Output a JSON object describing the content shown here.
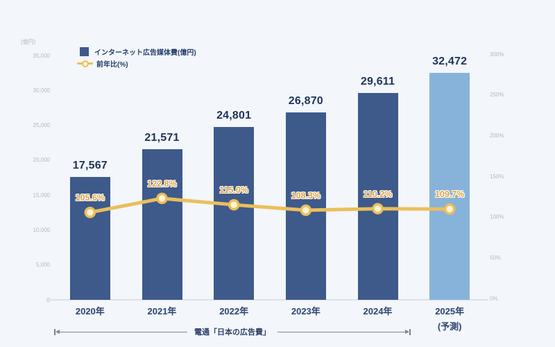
{
  "chart_data": {
    "type": "bar",
    "title": "",
    "categories": [
      "2020年",
      "2021年",
      "2022年",
      "2023年",
      "2024年",
      "2025年"
    ],
    "forecast_index": 5,
    "forecast_note": "(予測)",
    "series": [
      {
        "name": "インターネット広告媒体費(億円)",
        "type": "bar",
        "values": [
          17567,
          21571,
          24801,
          26870,
          29611,
          32472
        ],
        "display": [
          "17,567",
          "21,571",
          "24,801",
          "26,870",
          "29,611",
          "32,472"
        ]
      },
      {
        "name": "前年比(%)",
        "type": "line",
        "values": [
          105.6,
          122.8,
          115.0,
          108.3,
          110.2,
          109.7
        ],
        "display": [
          "105.6%",
          "122.8%",
          "115.0%",
          "108.3%",
          "110.2%",
          "109.7%"
        ]
      }
    ],
    "left_axis": {
      "title": "(億円)",
      "ticks": [
        "35,000",
        "30,000",
        "25,000",
        "20,000",
        "15,000",
        "10,000",
        "5,000",
        "0"
      ],
      "lim": [
        0,
        35000
      ]
    },
    "right_axis": {
      "ticks": [
        "300%",
        "250%",
        "200%",
        "150%",
        "100%",
        "50%",
        "0%"
      ],
      "lim": [
        0,
        300
      ]
    },
    "annotation": "電通「日本の広告費」",
    "grid": false,
    "legend_position": "top-left",
    "colors": {
      "bg": "#f3f6fa",
      "bar": "#3e5a8b",
      "bar_forecast": "#87b3da",
      "line": "#eabf5b",
      "marker_fill": "#fdf3d6",
      "value_label": "#1f3459",
      "pct_label": "#dfa23e",
      "year_label": "#2b4470",
      "axis_label": "#b3bac6",
      "legend_text": "#26406b",
      "annotation_color": "#2d4066",
      "arrow": "#7a8699",
      "baseline": "#dde2ea"
    }
  }
}
